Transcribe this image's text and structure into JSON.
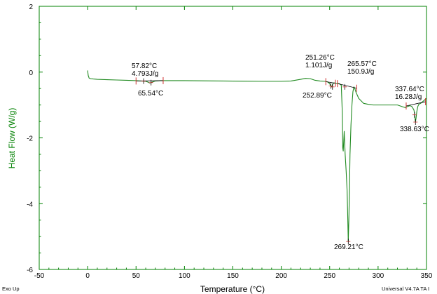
{
  "chart_data": {
    "type": "line",
    "title": "",
    "xlabel": "Temperature (°C)",
    "ylabel": "Heat Flow (W/g)",
    "xlim": [
      -50,
      350
    ],
    "ylim": [
      -6,
      2
    ],
    "xticks": [
      -50,
      0,
      50,
      100,
      150,
      200,
      250,
      300,
      350
    ],
    "yticks": [
      2,
      0,
      -2,
      -4,
      -6
    ],
    "grid": false,
    "legend": "none",
    "colors": {
      "curve": "#228B22",
      "axes": "#008000",
      "markers": "#d03030",
      "annotation": "#000000"
    },
    "series": [
      {
        "x": [
          0,
          0.6,
          1.5,
          3,
          6,
          10,
          20,
          30,
          40,
          45,
          50,
          55,
          58,
          60,
          62,
          64,
          65.5,
          67,
          70,
          75,
          80,
          100,
          120,
          140,
          160,
          180,
          200,
          210,
          220,
          225,
          230,
          235,
          240,
          245,
          248,
          250,
          251,
          252,
          253,
          254,
          255,
          258,
          260,
          262,
          263,
          263.5,
          264,
          265,
          266,
          267,
          268,
          268.5,
          269.2,
          269.8,
          270.5,
          271,
          272,
          273,
          274,
          275,
          276,
          277,
          280,
          285,
          290,
          295,
          300,
          305,
          310,
          315,
          320,
          325,
          328,
          330,
          333,
          335,
          336,
          337,
          337.6,
          338,
          338.6,
          339.2,
          340,
          341,
          342,
          344,
          346,
          348,
          349.5
        ],
        "y": [
          0.05,
          -0.1,
          -0.18,
          -0.2,
          -0.21,
          -0.22,
          -0.23,
          -0.24,
          -0.25,
          -0.255,
          -0.26,
          -0.27,
          -0.275,
          -0.28,
          -0.3,
          -0.33,
          -0.32,
          -0.3,
          -0.27,
          -0.26,
          -0.26,
          -0.26,
          -0.265,
          -0.27,
          -0.275,
          -0.28,
          -0.28,
          -0.27,
          -0.22,
          -0.19,
          -0.2,
          -0.25,
          -0.27,
          -0.28,
          -0.3,
          -0.35,
          -0.42,
          -0.45,
          -0.38,
          -0.33,
          -0.33,
          -0.35,
          -0.35,
          -0.4,
          -1.2,
          -2.3,
          -2.4,
          -1.8,
          -2.5,
          -3.0,
          -3.6,
          -4.2,
          -5.15,
          -4.5,
          -3.5,
          -2.5,
          -1.6,
          -1.0,
          -0.6,
          -0.45,
          -0.5,
          -0.6,
          -0.8,
          -0.95,
          -0.98,
          -1.0,
          -1.0,
          -1.0,
          -1.0,
          -1.0,
          -1.0,
          -1.05,
          -1.08,
          -1.05,
          -1.02,
          -1.05,
          -1.1,
          -1.15,
          -1.25,
          -1.35,
          -1.52,
          -1.4,
          -1.2,
          -1.05,
          -0.98,
          -0.95,
          -0.9,
          -0.85,
          -0.8
        ]
      }
    ],
    "annotations": [
      {
        "text": "57.82°C",
        "x": 57.82
      },
      {
        "text": "4.793J/g",
        "x": 57.82
      },
      {
        "text": "65.54°C",
        "x": 65.54
      },
      {
        "text": "251.26°C",
        "x": 251.26
      },
      {
        "text": "1.101J/g",
        "x": 251.26
      },
      {
        "text": "252.89°C",
        "x": 252.89
      },
      {
        "text": "265.57°C",
        "x": 265.57
      },
      {
        "text": "150.9J/g",
        "x": 265.57
      },
      {
        "text": "269.21°C",
        "x": 269.21
      },
      {
        "text": "337.64°C",
        "x": 337.64
      },
      {
        "text": "16.28J/g",
        "x": 337.64
      },
      {
        "text": "338.63°C",
        "x": 338.63
      }
    ],
    "integration_limits": [
      {
        "x1": 50,
        "y1": -0.27,
        "x2": 78,
        "y2": -0.26
      },
      {
        "x1": 246,
        "y1": -0.29,
        "x2": 256,
        "y2": -0.34
      },
      {
        "x1": 258,
        "y1": -0.35,
        "x2": 278,
        "y2": -0.49
      },
      {
        "x1": 329,
        "y1": -1.03,
        "x2": 349,
        "y2": -0.9
      }
    ],
    "peak_markers": [
      {
        "x": 57.82,
        "y": -0.275
      },
      {
        "x": 65.54,
        "y": -0.32
      },
      {
        "x": 251.26,
        "y": -0.42
      },
      {
        "x": 252.89,
        "y": -0.45
      },
      {
        "x": 265.57,
        "y": -0.45
      },
      {
        "x": 269.21,
        "y": -5.15
      },
      {
        "x": 337.64,
        "y": -1.3
      },
      {
        "x": 338.63,
        "y": -1.52
      }
    ]
  },
  "footer": {
    "left_text": "Exo Up",
    "right_text": "Universal V4.7A TA I"
  }
}
